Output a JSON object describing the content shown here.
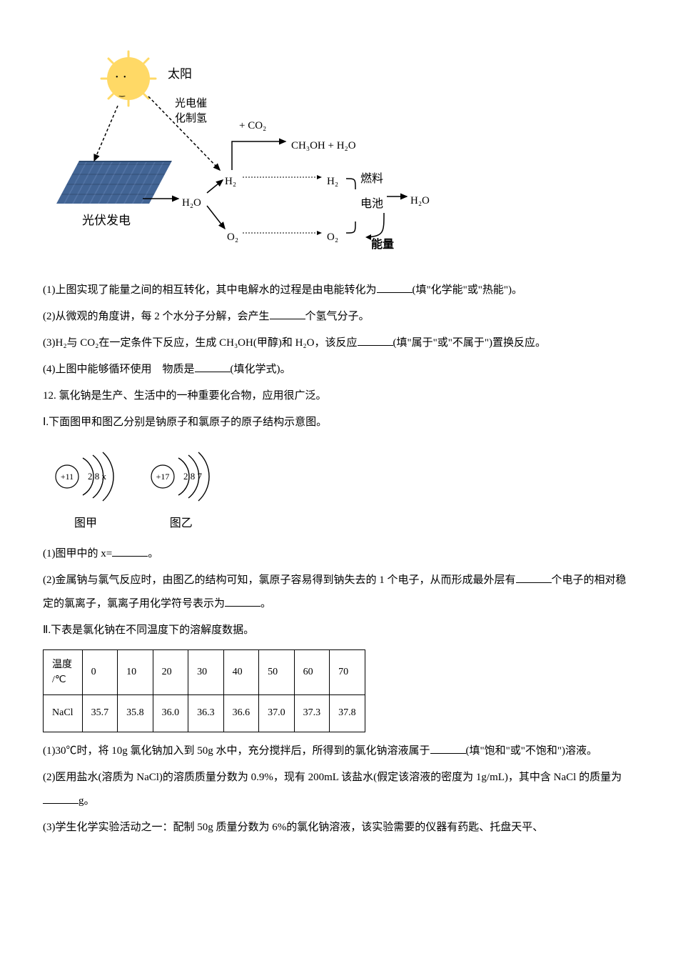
{
  "diagram": {
    "sun_label": "太阳",
    "photocatalysis_line1": "光电催",
    "photocatalysis_line2": "化制氢",
    "plus_co2": "+ CO₂",
    "ch3oh": "CH₃OH + H₂O",
    "h2_left": "H₂",
    "h2_right": "H₂",
    "o2_left": "O₂",
    "o2_right": "O₂",
    "h2o_left": "H₂O",
    "h2o_right": "H₂O",
    "fuel_cell_line1": "燃料",
    "fuel_cell_line2": "电池",
    "energy": "能量",
    "panel_label": "光伏发电"
  },
  "questions": {
    "q1": "(1)上图实现了能量之间的相互转化，其中电解水的过程是由电能转化为_______(填\"化学能\"或\"热能\")。",
    "q2": "(2)从微观的角度讲，每 2 个水分子分解，会产生_______个氢气分子。",
    "q3_a": "(3)H₂与 CO₂在一定条件下反应，生成 CH₃OH(甲醇)和 H₂O，该反应_______(填\"属于\"或\"不属于\")置换反应。",
    "q4": "(4)上图中能够循环使用　物质是_______(填化学式)。",
    "q12": "12. 氯化钠是生产、生活中的一种重要化合物，应用很广泛。",
    "section1": "Ⅰ.下面图甲和图乙分别是钠原子和氯原子的原子结构示意图。",
    "atom_a_nucleus": "+11",
    "atom_a_shells": "2 8 x",
    "atom_a_label": "图甲",
    "atom_b_nucleus": "+17",
    "atom_b_shells": "2 8 7",
    "atom_b_label": "图乙",
    "s1_q1": "(1)图甲中的 x=_______。",
    "s1_q2": "(2)金属钠与氯气反应时，由图乙的结构可知，氯原子容易得到钠失去的 1 个电子，从而形成最外层有_______个电子的相对稳定的氯离子，氯离子用化学符号表示为_______。",
    "section2": "Ⅱ.下表是氯化钠在不同温度下的溶解度数据。",
    "s2_q1": "(1)30℃时，将 10g 氯化钠加入到 50g 水中，充分搅拌后，所得到的氯化钠溶液属于_______(填\"饱和\"或\"不饱和\")溶液。",
    "s2_q2": "(2)医用盐水(溶质为 NaCl)的溶质质量分数为 0.9%，现有 200mL 该盐水(假定该溶液的密度为 1g/mL)，其中含 NaCl 的质量为_______g。",
    "s2_q3": "(3)学生化学实验活动之一：配制 50g 质量分数为 6%的氯化钠溶液，该实验需要的仪器有药匙、托盘天平、"
  },
  "table": {
    "header_label": "温度/℃",
    "row_label": "NaCl",
    "temps": [
      "0",
      "10",
      "20",
      "30",
      "40",
      "50",
      "60",
      "70"
    ],
    "values": [
      "35.7",
      "35.8",
      "36.0",
      "36.3",
      "36.6",
      "37.0",
      "37.3",
      "37.8"
    ]
  }
}
